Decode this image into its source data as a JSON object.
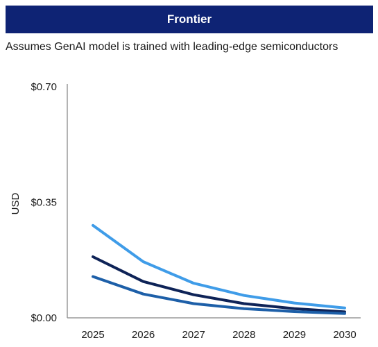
{
  "header": {
    "title": "Frontier"
  },
  "subtitle": "Assumes GenAI model is trained with leading-edge semiconductors",
  "colors": {
    "banner": "#0e2374",
    "axis": "#9a9a9a"
  },
  "chart_data": {
    "type": "line",
    "title": "Frontier",
    "subtitle": "Assumes GenAI model is trained with leading-edge semiconductors",
    "xlabel": "",
    "ylabel": "USD",
    "x": [
      "2025",
      "2026",
      "2027",
      "2028",
      "2029",
      "2030"
    ],
    "ylim": [
      0,
      0.7
    ],
    "yticks": [
      {
        "value": 0.0,
        "label": "$0.00"
      },
      {
        "value": 0.35,
        "label": "$0.35"
      },
      {
        "value": 0.7,
        "label": "$0.70"
      }
    ],
    "grid": false,
    "legend": "none",
    "series": [
      {
        "values": [
          0.28,
          0.17,
          0.105,
          0.068,
          0.045,
          0.03
        ],
        "color": "#3f9ce8"
      },
      {
        "values": [
          0.185,
          0.11,
          0.07,
          0.043,
          0.028,
          0.018
        ],
        "color": "#0e2357"
      },
      {
        "values": [
          0.125,
          0.072,
          0.043,
          0.028,
          0.019,
          0.013
        ],
        "color": "#1d5fa8"
      }
    ]
  }
}
